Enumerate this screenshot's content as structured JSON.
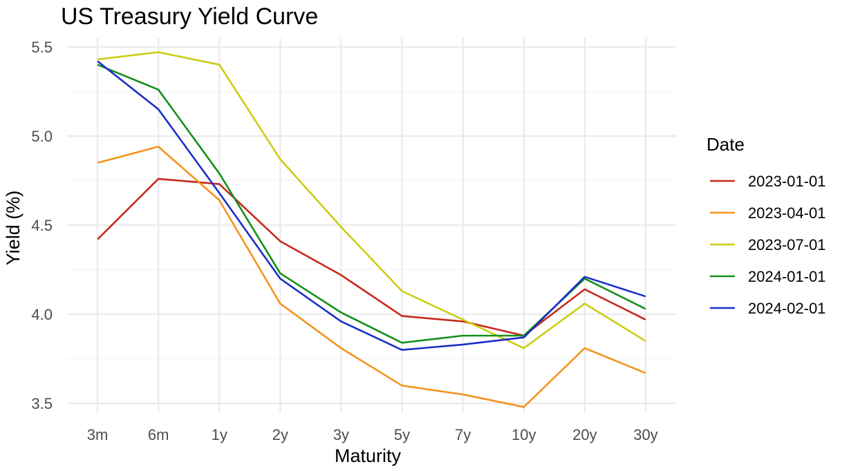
{
  "chart_data": {
    "type": "line",
    "title": "US Treasury Yield Curve",
    "xlabel": "Maturity",
    "ylabel": "Yield (%)",
    "categories": [
      "3m",
      "6m",
      "1y",
      "2y",
      "3y",
      "5y",
      "7y",
      "10y",
      "20y",
      "30y"
    ],
    "ylim": [
      3.45,
      5.55
    ],
    "yticks": [
      "3.5",
      "4.0",
      "4.5",
      "5.0",
      "5.5"
    ],
    "grid": true,
    "legend": {
      "title": "Date",
      "position": "right"
    },
    "series": [
      {
        "name": "2023-01-01",
        "color": "#c8281c",
        "values": [
          4.42,
          4.76,
          4.73,
          4.41,
          4.22,
          3.99,
          3.96,
          3.88,
          4.14,
          3.97
        ]
      },
      {
        "name": "2023-04-01",
        "color": "#f5921e",
        "values": [
          4.85,
          4.94,
          4.64,
          4.06,
          3.81,
          3.6,
          3.55,
          3.48,
          3.81,
          3.67
        ]
      },
      {
        "name": "2023-07-01",
        "color": "#cccc14",
        "values": [
          5.43,
          5.47,
          5.4,
          4.87,
          4.49,
          4.13,
          3.97,
          3.81,
          4.06,
          3.85
        ]
      },
      {
        "name": "2024-01-01",
        "color": "#13901a",
        "values": [
          5.4,
          5.26,
          4.79,
          4.23,
          4.01,
          3.84,
          3.88,
          3.88,
          4.2,
          4.03
        ]
      },
      {
        "name": "2024-02-01",
        "color": "#1a2ec8",
        "values": [
          5.42,
          5.15,
          4.68,
          4.2,
          3.96,
          3.8,
          3.83,
          3.87,
          4.21,
          4.1
        ]
      }
    ]
  }
}
